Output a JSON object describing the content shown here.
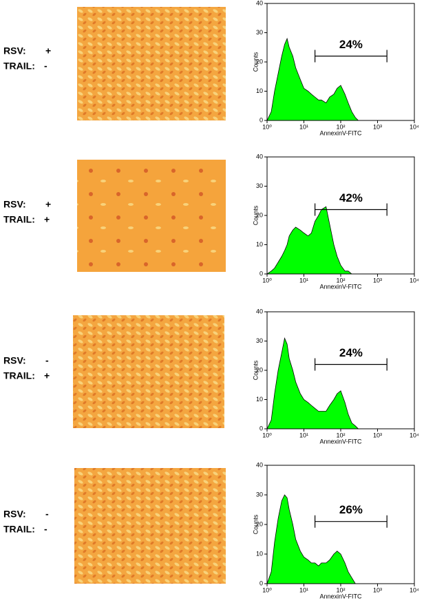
{
  "rows": [
    {
      "rsv_label": "RSV:",
      "rsv": "+",
      "trail_label": "TRAIL:",
      "trail": "-"
    },
    {
      "rsv_label": "RSV:",
      "rsv": "+",
      "trail_label": "TRAIL:",
      "trail": "+"
    },
    {
      "rsv_label": "RSV:",
      "rsv": "-",
      "trail_label": "TRAIL:",
      "trail": "+"
    },
    {
      "rsv_label": "RSV:",
      "rsv": "-",
      "trail_label": "TRAIL:",
      "trail": "-"
    }
  ],
  "chart_data": [
    {
      "type": "area",
      "ylabel": "Counts",
      "xlabel": "AnnexinV-FITC",
      "color": "#00ff00",
      "xlog": true,
      "xlim": [
        1,
        10000
      ],
      "ylim": [
        0,
        40
      ],
      "xticks": [
        {
          "value": 1,
          "label": "10⁰"
        },
        {
          "value": 10,
          "label": "10¹"
        },
        {
          "value": 100,
          "label": "10²"
        },
        {
          "value": 1000,
          "label": "10³"
        },
        {
          "value": 10000,
          "label": "10⁴"
        }
      ],
      "yticks": [
        0,
        10,
        20,
        30,
        40
      ],
      "x": [
        1,
        1.3,
        1.6,
        2,
        2.5,
        3,
        3.5,
        4,
        5,
        6,
        8,
        10,
        13,
        16,
        20,
        25,
        30,
        40,
        50,
        65,
        80,
        100,
        130,
        160,
        200,
        250,
        300
      ],
      "values": [
        0,
        3,
        10,
        16,
        22,
        26,
        28,
        25,
        22,
        18,
        14,
        11,
        10,
        9,
        8,
        7,
        7,
        6,
        8,
        9,
        11,
        12,
        9,
        6,
        3,
        1,
        0
      ],
      "gate": {
        "x": [
          20,
          1800
        ],
        "y": 22,
        "label": "24%"
      }
    },
    {
      "type": "area",
      "ylabel": "Counts",
      "xlabel": "AnnexinV-FITC",
      "color": "#00ff00",
      "xlog": true,
      "xlim": [
        1,
        10000
      ],
      "ylim": [
        0,
        40
      ],
      "xticks": [
        {
          "value": 1,
          "label": "10⁰"
        },
        {
          "value": 10,
          "label": "10¹"
        },
        {
          "value": 100,
          "label": "10²"
        },
        {
          "value": 1000,
          "label": "10³"
        },
        {
          "value": 10000,
          "label": "10⁴"
        }
      ],
      "yticks": [
        0,
        10,
        20,
        30,
        40
      ],
      "x": [
        1,
        1.3,
        1.6,
        2,
        2.5,
        3,
        3.5,
        4,
        5,
        6,
        8,
        10,
        13,
        16,
        20,
        25,
        30,
        40,
        50,
        65,
        80,
        100,
        130,
        160,
        200,
        250,
        300
      ],
      "values": [
        0,
        1,
        2,
        4,
        6,
        8,
        10,
        13,
        15,
        16,
        15,
        14,
        13,
        14,
        18,
        20,
        22,
        23,
        17,
        10,
        6,
        3,
        1,
        1,
        0,
        0,
        0
      ],
      "gate": {
        "x": [
          20,
          1800
        ],
        "y": 22,
        "label": "42%"
      }
    },
    {
      "type": "area",
      "ylabel": "Counts",
      "xlabel": "AnnexinV-FITC",
      "color": "#00ff00",
      "xlog": true,
      "xlim": [
        1,
        10000
      ],
      "ylim": [
        0,
        40
      ],
      "xticks": [
        {
          "value": 1,
          "label": "10⁰"
        },
        {
          "value": 10,
          "label": "10¹"
        },
        {
          "value": 100,
          "label": "10²"
        },
        {
          "value": 1000,
          "label": "10³"
        },
        {
          "value": 10000,
          "label": "10⁴"
        }
      ],
      "yticks": [
        0,
        10,
        20,
        30,
        40
      ],
      "x": [
        1,
        1.3,
        1.6,
        2,
        2.5,
        3,
        3.5,
        4,
        5,
        6,
        8,
        10,
        13,
        16,
        20,
        25,
        30,
        40,
        50,
        65,
        80,
        100,
        130,
        160,
        200,
        250,
        300
      ],
      "values": [
        0,
        3,
        12,
        20,
        26,
        31,
        29,
        24,
        20,
        16,
        12,
        10,
        9,
        8,
        7,
        6,
        6,
        6,
        8,
        10,
        12,
        13,
        9,
        5,
        2,
        1,
        0
      ],
      "gate": {
        "x": [
          20,
          1800
        ],
        "y": 22,
        "label": "24%"
      }
    },
    {
      "type": "area",
      "ylabel": "Counts",
      "xlabel": "AnnexinV-FITC",
      "color": "#00ff00",
      "xlog": true,
      "xlim": [
        1,
        10000
      ],
      "ylim": [
        0,
        40
      ],
      "xticks": [
        {
          "value": 1,
          "label": "10⁰"
        },
        {
          "value": 10,
          "label": "10¹"
        },
        {
          "value": 100,
          "label": "10²"
        },
        {
          "value": 1000,
          "label": "10³"
        },
        {
          "value": 10000,
          "label": "10⁴"
        }
      ],
      "yticks": [
        0,
        10,
        20,
        30,
        40
      ],
      "x": [
        1,
        1.3,
        1.6,
        2,
        2.5,
        3,
        3.5,
        4,
        5,
        6,
        8,
        10,
        13,
        16,
        20,
        25,
        30,
        40,
        50,
        65,
        80,
        100,
        130,
        160,
        200,
        250,
        300
      ],
      "values": [
        0,
        4,
        14,
        22,
        28,
        30,
        29,
        25,
        20,
        15,
        11,
        9,
        8,
        7,
        7,
        6,
        7,
        7,
        8,
        10,
        11,
        10,
        7,
        4,
        2,
        0,
        0
      ],
      "gate": {
        "x": [
          20,
          1800
        ],
        "y": 21,
        "label": "26%"
      }
    }
  ]
}
